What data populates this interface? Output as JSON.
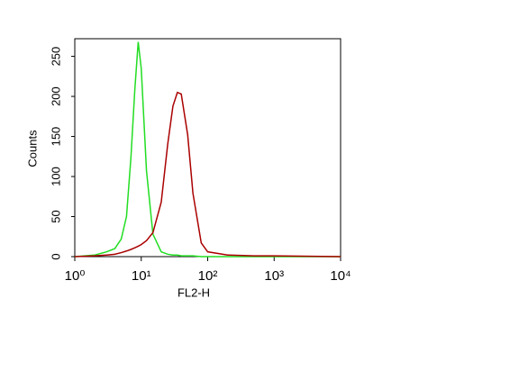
{
  "chart_data": {
    "type": "line",
    "xlabel": "FL2-H",
    "ylabel": "Counts",
    "xscale": "log",
    "x": [
      1,
      2,
      3,
      4,
      5,
      6,
      7,
      8,
      9,
      10,
      12,
      15,
      20,
      25,
      30,
      35,
      40,
      50,
      60,
      80,
      100,
      200,
      500,
      1000,
      10000
    ],
    "series": [
      {
        "color": "#22dd22",
        "values": [
          0,
          2,
          6,
          10,
          22,
          50,
          124,
          208,
          268,
          235,
          107,
          28,
          6,
          3,
          2,
          2,
          1,
          1,
          1,
          0,
          0,
          0,
          0,
          0,
          0
        ]
      },
      {
        "color": "#aa0000",
        "values": [
          0,
          1,
          2,
          3,
          5,
          7,
          9,
          11,
          13,
          15,
          20,
          30,
          68,
          140,
          188,
          205,
          203,
          152,
          79,
          17,
          6,
          2,
          1,
          1,
          0
        ]
      }
    ],
    "xlim": [
      1,
      10000
    ],
    "xticks": [
      {
        "value": 1,
        "label": "10⁰"
      },
      {
        "value": 10,
        "label": "10¹"
      },
      {
        "value": 100,
        "label": "10²"
      },
      {
        "value": 1000,
        "label": "10³"
      },
      {
        "value": 10000,
        "label": "10⁴"
      }
    ],
    "ylim": [
      0,
      272
    ],
    "yticks": [
      0,
      50,
      100,
      150,
      200,
      250
    ],
    "grid": false
  }
}
